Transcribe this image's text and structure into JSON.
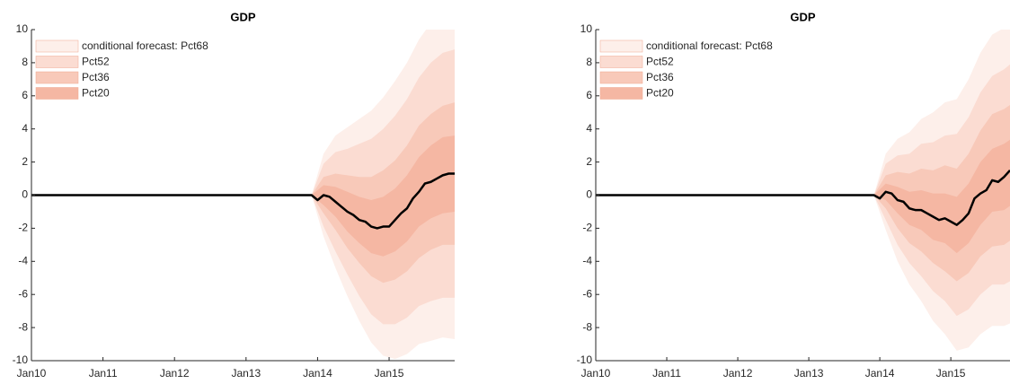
{
  "chart_data": [
    {
      "type": "fan",
      "title": "GDP",
      "legend": "upper left",
      "xlim": [
        "2010-01",
        "2015-12"
      ],
      "xticks": [
        {
          "value": "2010-01",
          "label": "Jan10"
        },
        {
          "value": "2011-01",
          "label": "Jan11"
        },
        {
          "value": "2012-01",
          "label": "Jan12"
        },
        {
          "value": "2013-01",
          "label": "Jan13"
        },
        {
          "value": "2014-01",
          "label": "Jan14"
        },
        {
          "value": "2015-01",
          "label": "Jan15"
        }
      ],
      "ylim": [
        -10,
        10
      ],
      "yticks": [
        -10,
        -8,
        -6,
        -4,
        -2,
        0,
        2,
        4,
        6,
        8,
        10
      ],
      "band_x": [
        "2013-12",
        "2014-02",
        "2014-04",
        "2014-06",
        "2014-08",
        "2014-10",
        "2014-12",
        "2015-02",
        "2015-04",
        "2015-06",
        "2015-08",
        "2015-10",
        "2015-12"
      ],
      "bands": [
        {
          "name": "conditional forecast: Pct68",
          "color": "#fdefea",
          "upper": [
            0,
            2.5,
            3.6,
            4.1,
            4.6,
            5.1,
            5.9,
            6.9,
            8,
            9.4,
            10.4,
            11,
            11.3
          ],
          "lower": [
            0,
            -2.5,
            -4.4,
            -6.1,
            -7.6,
            -8.9,
            -9.7,
            -9.9,
            -9.6,
            -9,
            -8.8,
            -8.6,
            -8.7
          ]
        },
        {
          "name": "Pct52",
          "color": "#fbdcd2",
          "upper": [
            0,
            1.9,
            2.6,
            2.8,
            3.1,
            3.4,
            4,
            4.8,
            5.8,
            7.1,
            8,
            8.6,
            8.8
          ],
          "lower": [
            0,
            -1.9,
            -3.4,
            -4.8,
            -6.1,
            -7.2,
            -7.8,
            -7.8,
            -7.4,
            -6.7,
            -6.4,
            -6.2,
            -6.2
          ]
        },
        {
          "name": "Pct36",
          "color": "#f8c9b9",
          "upper": [
            0,
            1.1,
            1.3,
            1.2,
            1.1,
            1.1,
            1.5,
            2.1,
            3,
            4.2,
            4.9,
            5.4,
            5.6
          ],
          "lower": [
            0,
            -1.1,
            -2.1,
            -3.2,
            -4.1,
            -4.9,
            -5.3,
            -5.1,
            -4.6,
            -3.8,
            -3.3,
            -3,
            -3
          ]
        },
        {
          "name": "Pct20",
          "color": "#f5b7a3",
          "upper": [
            0,
            0.6,
            0.5,
            0.2,
            -0.1,
            -0.3,
            -0.1,
            0.4,
            1.2,
            2.3,
            3,
            3.5,
            3.6
          ],
          "lower": [
            0,
            -0.6,
            -1.3,
            -2.2,
            -2.9,
            -3.5,
            -3.7,
            -3.4,
            -2.8,
            -1.9,
            -1.4,
            -1.1,
            -1
          ]
        }
      ],
      "series": [
        {
          "color": "#000000",
          "x": [
            "2010-01",
            "2013-12",
            "2014-01",
            "2014-02",
            "2014-03",
            "2014-04",
            "2014-05",
            "2014-06",
            "2014-07",
            "2014-08",
            "2014-09",
            "2014-10",
            "2014-11",
            "2014-12",
            "2015-01",
            "2015-02",
            "2015-03",
            "2015-04",
            "2015-05",
            "2015-06",
            "2015-07",
            "2015-08",
            "2015-09",
            "2015-10",
            "2015-11",
            "2015-12"
          ],
          "values": [
            0,
            0,
            -0.3,
            0,
            -0.1,
            -0.4,
            -0.7,
            -1.0,
            -1.2,
            -1.5,
            -1.6,
            -1.9,
            -2.0,
            -1.9,
            -1.9,
            -1.5,
            -1.1,
            -0.8,
            -0.2,
            0.2,
            0.7,
            0.8,
            1.0,
            1.2,
            1.3,
            1.3
          ]
        }
      ]
    },
    {
      "type": "fan",
      "title": "GDP",
      "legend": "upper left",
      "xlim": [
        "2010-01",
        "2015-11"
      ],
      "xticks": [
        {
          "value": "2010-01",
          "label": "Jan10"
        },
        {
          "value": "2011-01",
          "label": "Jan11"
        },
        {
          "value": "2012-01",
          "label": "Jan12"
        },
        {
          "value": "2013-01",
          "label": "Jan13"
        },
        {
          "value": "2014-01",
          "label": "Jan14"
        },
        {
          "value": "2015-01",
          "label": "Jan15"
        }
      ],
      "ylim": [
        -10,
        10
      ],
      "yticks": [
        -10,
        -8,
        -6,
        -4,
        -2,
        0,
        2,
        4,
        6,
        8,
        10
      ],
      "band_x": [
        "2013-12",
        "2014-02",
        "2014-04",
        "2014-06",
        "2014-08",
        "2014-10",
        "2014-12",
        "2015-02",
        "2015-04",
        "2015-06",
        "2015-08",
        "2015-10",
        "2015-12"
      ],
      "bands": [
        {
          "name": "conditional forecast: Pct68",
          "color": "#fdefea",
          "upper": [
            0,
            2.5,
            3.4,
            3.8,
            4.6,
            5,
            5.6,
            5.8,
            7,
            8.6,
            9.7,
            10.1,
            10.8
          ],
          "lower": [
            0,
            -2.1,
            -4,
            -5.4,
            -6.4,
            -7.6,
            -8.4,
            -9.4,
            -9.2,
            -8.4,
            -7.9,
            -7.9,
            -7.6
          ]
        },
        {
          "name": "Pct52",
          "color": "#fbdcd2",
          "upper": [
            0,
            1.9,
            2.4,
            2.5,
            3.1,
            3.2,
            3.6,
            3.7,
            4.7,
            6.2,
            7.2,
            7.6,
            8.2
          ],
          "lower": [
            0,
            -1.5,
            -3,
            -4.1,
            -4.9,
            -5.8,
            -6.4,
            -7.3,
            -6.9,
            -6,
            -5.4,
            -5.4,
            -5
          ]
        },
        {
          "name": "Pct36",
          "color": "#f8c9b9",
          "upper": [
            0,
            1.2,
            1.4,
            1.3,
            1.6,
            1.5,
            1.8,
            1.6,
            2.5,
            3.9,
            4.9,
            5.2,
            5.7
          ],
          "lower": [
            0,
            -0.8,
            -2,
            -2.9,
            -3.4,
            -4.1,
            -4.6,
            -5.2,
            -4.7,
            -3.7,
            -3.1,
            -3,
            -2.5
          ]
        },
        {
          "name": "Pct20",
          "color": "#f5b7a3",
          "upper": [
            0,
            0.7,
            0.5,
            0.2,
            0.3,
            0.1,
            0.1,
            -0.1,
            0.7,
            2,
            2.8,
            3.1,
            3.6
          ],
          "lower": [
            0,
            -0.3,
            -1.1,
            -1.8,
            -2.1,
            -2.7,
            -2.9,
            -3.5,
            -2.9,
            -1.8,
            -1,
            -0.9,
            -0.4
          ]
        }
      ],
      "series": [
        {
          "color": "#000000",
          "x": [
            "2010-01",
            "2013-12",
            "2014-01",
            "2014-02",
            "2014-03",
            "2014-04",
            "2014-05",
            "2014-06",
            "2014-07",
            "2014-08",
            "2014-09",
            "2014-10",
            "2014-11",
            "2014-12",
            "2015-01",
            "2015-02",
            "2015-03",
            "2015-04",
            "2015-05",
            "2015-06",
            "2015-07",
            "2015-08",
            "2015-09",
            "2015-10",
            "2015-11"
          ],
          "values": [
            0,
            0,
            -0.2,
            0.2,
            0.1,
            -0.3,
            -0.4,
            -0.8,
            -0.9,
            -0.9,
            -1.1,
            -1.3,
            -1.5,
            -1.4,
            -1.6,
            -1.8,
            -1.5,
            -1.1,
            -0.2,
            0.1,
            0.3,
            0.9,
            0.8,
            1.1,
            1.5
          ]
        }
      ]
    }
  ]
}
